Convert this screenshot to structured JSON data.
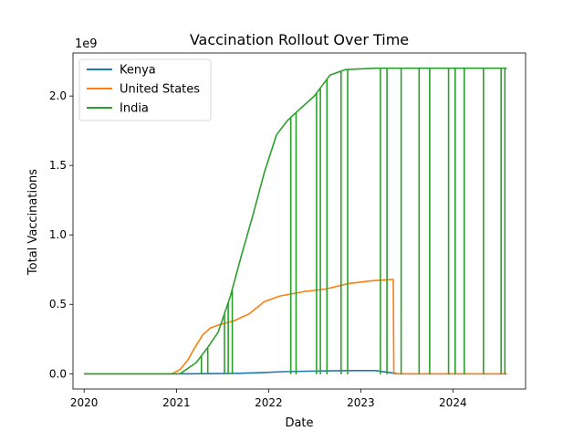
{
  "chart_data": {
    "type": "line",
    "title": "Vaccination Rollout Over Time",
    "xlabel": "Date",
    "ylabel": "Total Vaccinations",
    "y_offset_label": "1e9",
    "xlim": [
      "2019-11-18",
      "2024-10-15"
    ],
    "ylim": [
      -0.11,
      2.31
    ],
    "x_ticks": [
      {
        "date": "2020-01-01",
        "label": "2020"
      },
      {
        "date": "2021-01-01",
        "label": "2021"
      },
      {
        "date": "2022-01-01",
        "label": "2022"
      },
      {
        "date": "2023-01-01",
        "label": "2023"
      },
      {
        "date": "2024-01-01",
        "label": "2024"
      }
    ],
    "y_ticks": [
      {
        "value": 0.0,
        "label": "0.0"
      },
      {
        "value": 0.5,
        "label": "0.5"
      },
      {
        "value": 1.0,
        "label": "1.0"
      },
      {
        "value": 1.5,
        "label": "1.5"
      },
      {
        "value": 2.0,
        "label": "2.0"
      }
    ],
    "grid": false,
    "legend_position": "top-left",
    "series": [
      {
        "name": "Kenya",
        "color": "#1f77b4",
        "points": [
          [
            "2020-01-01",
            0
          ],
          [
            "2021-03-01",
            0
          ],
          [
            "2021-06-01",
            0.001
          ],
          [
            "2021-09-01",
            0.003
          ],
          [
            "2021-12-01",
            0.008
          ],
          [
            "2022-03-01",
            0.015
          ],
          [
            "2022-06-01",
            0.018
          ],
          [
            "2022-09-01",
            0.021
          ],
          [
            "2022-12-01",
            0.023
          ],
          [
            "2023-03-01",
            0.023
          ],
          [
            "2023-06-01",
            0.0
          ],
          [
            "2024-08-01",
            0.0
          ]
        ]
      },
      {
        "name": "United States",
        "color": "#ff7f0e",
        "points": [
          [
            "2020-01-01",
            0
          ],
          [
            "2020-12-14",
            0
          ],
          [
            "2021-01-15",
            0.03
          ],
          [
            "2021-02-15",
            0.1
          ],
          [
            "2021-03-15",
            0.19
          ],
          [
            "2021-04-15",
            0.28
          ],
          [
            "2021-05-15",
            0.33
          ],
          [
            "2021-06-15",
            0.35
          ],
          [
            "2021-08-15",
            0.38
          ],
          [
            "2021-10-15",
            0.43
          ],
          [
            "2021-12-15",
            0.52
          ],
          [
            "2022-02-15",
            0.56
          ],
          [
            "2022-05-15",
            0.59
          ],
          [
            "2022-08-15",
            0.61
          ],
          [
            "2022-11-15",
            0.65
          ],
          [
            "2023-02-15",
            0.67
          ],
          [
            "2023-05-10",
            0.68
          ],
          [
            "2023-05-12",
            0.0
          ],
          [
            "2024-08-01",
            0.0
          ]
        ]
      },
      {
        "name": "India",
        "color": "#2ca02c",
        "points": [
          [
            "2020-01-01",
            0
          ],
          [
            "2021-01-15",
            0
          ],
          [
            "2021-03-20",
            0.08
          ],
          [
            "2021-05-01",
            0.18
          ],
          [
            "2021-06-15",
            0.3
          ],
          [
            "2021-08-01",
            0.55
          ],
          [
            "2021-09-15",
            0.85
          ],
          [
            "2021-11-01",
            1.15
          ],
          [
            "2021-12-15",
            1.45
          ],
          [
            "2022-02-01",
            1.72
          ],
          [
            "2022-03-15",
            1.82
          ],
          [
            "2022-05-01",
            1.9
          ],
          [
            "2022-07-01",
            2.0
          ],
          [
            "2022-09-01",
            2.15
          ],
          [
            "2022-11-01",
            2.19
          ],
          [
            "2023-03-01",
            2.2
          ],
          [
            "2024-08-01",
            2.2
          ]
        ],
        "drops": [
          "2021-04-10",
          "2021-05-05",
          "2021-07-10",
          "2021-07-25",
          "2021-08-10",
          "2022-03-30",
          "2022-04-20",
          "2022-07-10",
          "2022-07-25",
          "2022-08-20",
          "2022-10-15",
          "2022-11-10",
          "2023-03-20",
          "2023-04-15",
          "2023-06-10",
          "2023-08-20",
          "2023-10-01",
          "2023-12-15",
          "2024-01-10",
          "2024-02-15",
          "2024-05-01",
          "2024-07-10",
          "2024-07-25"
        ]
      }
    ]
  }
}
